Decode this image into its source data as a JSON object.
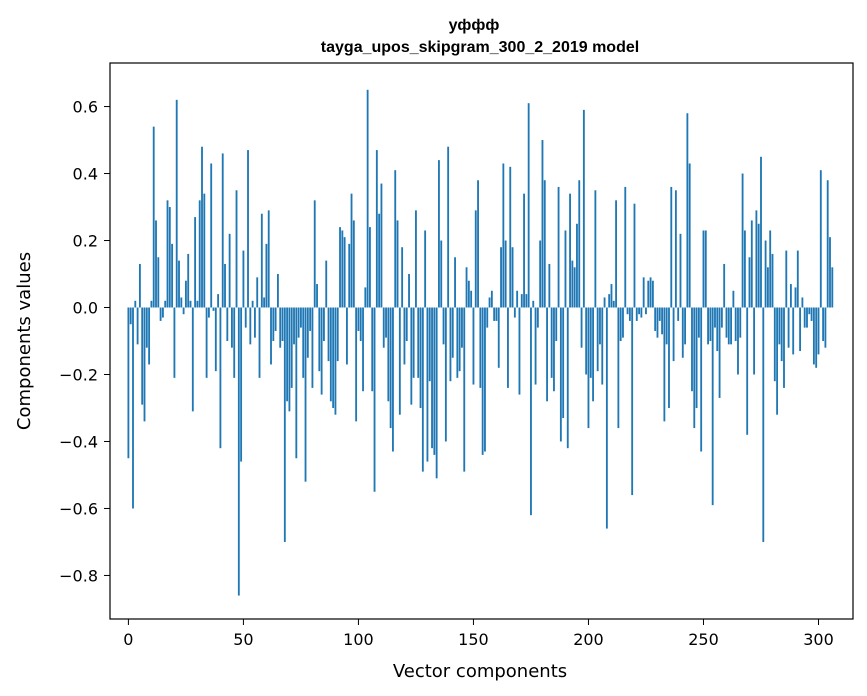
{
  "chart_data": {
    "type": "bar",
    "title": "уффф",
    "subtitle": "tayga_upos_skipgram_300_2_2019 model",
    "xlabel": "Vector components",
    "ylabel": "Components values",
    "xlim": [
      -8,
      315
    ],
    "ylim": [
      -0.93,
      0.73
    ],
    "xticks": [
      0,
      50,
      100,
      150,
      200,
      250,
      300
    ],
    "yticks": [
      -0.8,
      -0.6,
      -0.4,
      -0.2,
      0.0,
      0.2,
      0.4,
      0.6
    ],
    "xtick_labels": [
      "0",
      "50",
      "100",
      "150",
      "200",
      "250",
      "300"
    ],
    "ytick_labels": [
      "−0.8",
      "−0.6",
      "−0.4",
      "−0.2",
      "0.0",
      "0.2",
      "0.4",
      "0.6"
    ],
    "bar_color": "#1f77b4",
    "values": [
      -0.45,
      -0.05,
      -0.6,
      0.02,
      -0.11,
      0.13,
      -0.29,
      -0.34,
      -0.12,
      -0.17,
      0.02,
      0.54,
      0.26,
      0.15,
      -0.04,
      -0.03,
      0.02,
      0.32,
      0.3,
      0.19,
      -0.21,
      0.62,
      0.14,
      0.03,
      -0.02,
      0.08,
      0.16,
      0.02,
      -0.31,
      0.27,
      0.02,
      0.32,
      0.48,
      0.34,
      -0.21,
      -0.03,
      0.43,
      -0.01,
      -0.19,
      0.04,
      -0.42,
      0.46,
      0.13,
      -0.1,
      0.22,
      -0.12,
      -0.21,
      0.35,
      -0.86,
      -0.46,
      0.17,
      -0.06,
      0.47,
      -0.11,
      0.02,
      -0.09,
      0.09,
      -0.21,
      0.28,
      0.03,
      0.19,
      0.29,
      -0.17,
      -0.1,
      -0.07,
      0.1,
      -0.12,
      -0.1,
      -0.7,
      -0.28,
      -0.31,
      -0.24,
      -0.11,
      -0.45,
      -0.09,
      -0.06,
      -0.21,
      -0.52,
      -0.15,
      -0.07,
      -0.24,
      0.32,
      0.07,
      -0.19,
      -0.26,
      -0.1,
      0.14,
      -0.16,
      -0.28,
      -0.3,
      -0.32,
      -0.16,
      0.24,
      0.23,
      0.21,
      -0.17,
      0.19,
      0.34,
      0.26,
      -0.34,
      -0.07,
      -0.1,
      -0.25,
      0.06,
      0.65,
      0.24,
      -0.25,
      -0.55,
      0.47,
      0.28,
      0.37,
      -0.12,
      -0.09,
      -0.28,
      -0.36,
      -0.43,
      0.41,
      0.26,
      -0.32,
      0.18,
      -0.17,
      -0.1,
      0.1,
      -0.29,
      -0.21,
      0.29,
      -0.21,
      -0.3,
      -0.49,
      0.23,
      -0.46,
      -0.22,
      -0.42,
      -0.44,
      -0.51,
      0.44,
      0.2,
      -0.11,
      -0.4,
      0.48,
      -0.22,
      -0.15,
      0.15,
      -0.21,
      -0.19,
      -0.12,
      -0.49,
      0.12,
      0.08,
      0.05,
      -0.23,
      0.29,
      0.38,
      -0.24,
      -0.44,
      -0.43,
      -0.06,
      0.03,
      0.05,
      -0.04,
      -0.04,
      -0.18,
      0.18,
      0.43,
      0.2,
      -0.24,
      0.42,
      0.18,
      -0.03,
      0.05,
      -0.26,
      0.04,
      0.34,
      0.04,
      0.61,
      -0.62,
      0.02,
      -0.23,
      -0.06,
      0.2,
      0.5,
      0.38,
      -0.28,
      0.13,
      -0.21,
      -0.25,
      -0.1,
      0.36,
      -0.4,
      -0.33,
      0.23,
      -0.42,
      0.34,
      0.14,
      0.12,
      0.25,
      0.38,
      -0.12,
      0.59,
      -0.2,
      -0.36,
      -0.21,
      -0.28,
      0.35,
      -0.19,
      -0.11,
      -0.23,
      0.03,
      -0.66,
      0.04,
      0.07,
      0.02,
      0.32,
      -0.36,
      -0.1,
      -0.09,
      0.36,
      -0.02,
      -0.04,
      -0.56,
      0.31,
      -0.04,
      -0.02,
      -0.03,
      0.09,
      -0.02,
      0.08,
      0.09,
      0.08,
      -0.07,
      -0.09,
      -0.04,
      -0.08,
      -0.34,
      -0.11,
      -0.3,
      0.36,
      -0.16,
      0.35,
      -0.04,
      0.22,
      -0.15,
      -0.11,
      0.58,
      0.43,
      -0.25,
      -0.36,
      -0.3,
      -0.09,
      -0.43,
      0.23,
      0.23,
      -0.11,
      -0.1,
      -0.59,
      -0.06,
      -0.13,
      -0.27,
      -0.06,
      0.13,
      -0.09,
      -0.11,
      -0.11,
      0.05,
      -0.1,
      -0.2,
      -0.09,
      0.4,
      0.23,
      -0.38,
      0.15,
      0.26,
      -0.2,
      0.29,
      0.25,
      0.45,
      -0.7,
      0.2,
      0.12,
      0.23,
      0.16,
      -0.22,
      -0.32,
      -0.11,
      -0.16,
      -0.24,
      0.17,
      -0.12,
      0.07,
      -0.14,
      0.06,
      0.17,
      -0.13,
      0.03,
      -0.06,
      -0.06,
      -0.02,
      -0.04,
      -0.17,
      -0.18,
      -0.14,
      0.41,
      -0.1,
      -0.12,
      0.38,
      0.21,
      0.12
    ]
  }
}
